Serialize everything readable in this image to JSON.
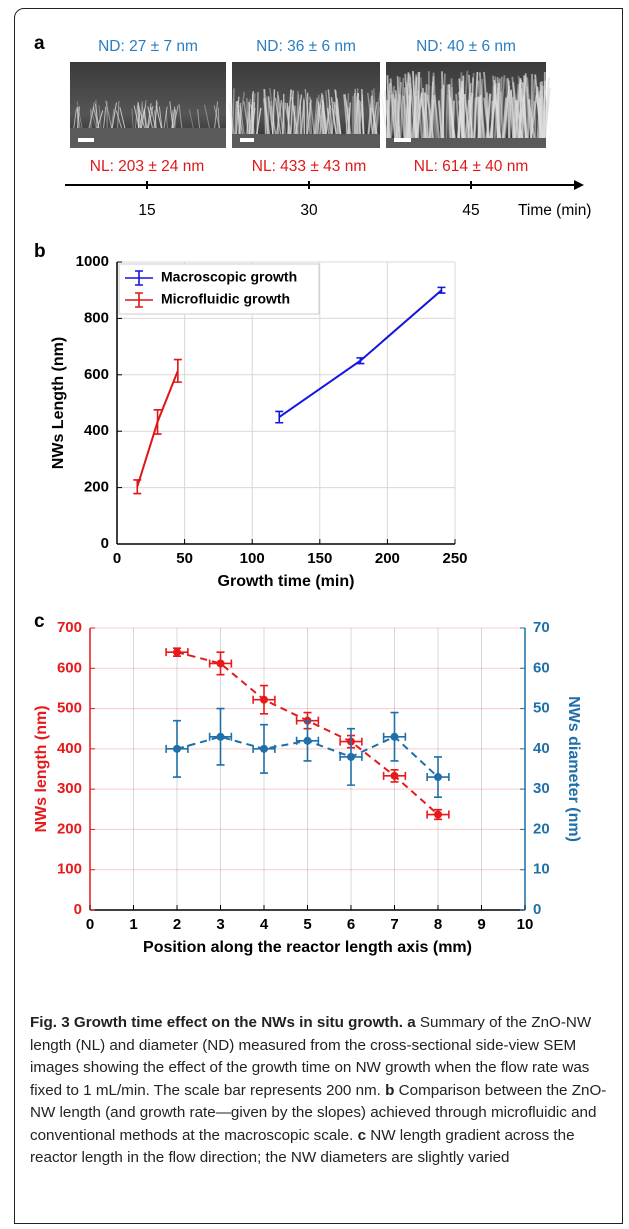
{
  "panel_a": {
    "label": "a",
    "diameter_labels": [
      "ND: 27 ± 7 nm",
      "ND: 36 ± 6 nm",
      "ND: 40 ± 6 nm"
    ],
    "length_labels": [
      "NL: 203 ± 24 nm",
      "NL: 433 ± 43 nm",
      "NL: 614 ± 40 nm"
    ],
    "timeline": {
      "xlim": [
        0,
        55
      ],
      "xticks": [
        15,
        30,
        45
      ],
      "xlabel": "Time (min)"
    }
  },
  "chart_data": [
    {
      "type": "line",
      "panel_label": "b",
      "xlabel": "Growth time (min)",
      "ylabel": "NWs Length (nm)",
      "xlim": [
        0,
        250
      ],
      "xticks": [
        0,
        50,
        100,
        150,
        200,
        250
      ],
      "ylim": [
        0,
        1000
      ],
      "yticks": [
        0,
        200,
        400,
        600,
        800,
        1000
      ],
      "grid": true,
      "legend": "upper left",
      "series": [
        {
          "name": "Macroscopic growth",
          "color": "#1515e0",
          "x": [
            120,
            180,
            240
          ],
          "values": [
            450,
            650,
            900
          ],
          "yerr": [
            20,
            10,
            10
          ]
        },
        {
          "name": "Microfluidic growth",
          "color": "#e01515",
          "x": [
            15,
            30,
            45
          ],
          "values": [
            203,
            433,
            614
          ],
          "yerr": [
            24,
            43,
            40
          ]
        }
      ]
    },
    {
      "type": "line",
      "panel_label": "c",
      "xlabel": "Position along the reactor length axis (mm)",
      "ylabel": "NWs length (nm)",
      "y2label": "NWs diameter (nm)",
      "xlim": [
        0,
        10
      ],
      "xticks": [
        0,
        1,
        2,
        3,
        4,
        5,
        6,
        7,
        8,
        9,
        10
      ],
      "ylim": [
        0,
        700
      ],
      "yticks": [
        0,
        100,
        200,
        300,
        400,
        500,
        600,
        700
      ],
      "y2lim": [
        0,
        70
      ],
      "y2ticks": [
        0,
        10,
        20,
        30,
        40,
        50,
        60,
        70
      ],
      "grid": true,
      "markers": true,
      "line_style": "dashed",
      "series": [
        {
          "color": "#e8191b",
          "x": [
            2,
            3,
            4,
            5,
            6,
            7,
            8
          ],
          "values": [
            640,
            612,
            522,
            470,
            418,
            333,
            237
          ],
          "yerr": [
            10,
            28,
            35,
            20,
            15,
            15,
            12
          ],
          "xerr": [
            0.25,
            0.25,
            0.25,
            0.25,
            0.25,
            0.25,
            0.25
          ]
        },
        {
          "color": "#1f6fa8",
          "axis": "y2",
          "x": [
            2,
            3,
            4,
            5,
            6,
            7,
            8
          ],
          "values": [
            40,
            43,
            40,
            42,
            38,
            43,
            33
          ],
          "yerr": [
            7,
            7,
            6,
            5,
            7,
            6,
            5
          ],
          "xerr": [
            0.25,
            0.25,
            0.25,
            0.25,
            0.25,
            0.25,
            0.25
          ]
        }
      ]
    }
  ],
  "caption": {
    "title": "Fig. 3 Growth time effect on the NWs in situ growth.",
    "parts": [
      {
        "label": "a",
        "text": "Summary of the ZnO-NW length (NL) and diameter (ND) measured from the cross-sectional side-view SEM images showing the effect of the growth time on NW growth when the flow rate was fixed to 1 mL/min. The scale bar represents 200 nm."
      },
      {
        "label": "b",
        "text": "Comparison between the ZnO-NW length (and growth rate—given by the slopes) achieved through microfluidic and conventional methods at the macroscopic scale."
      },
      {
        "label": "c",
        "text": "NW length gradient across the reactor length in the flow direction; the NW diameters are slightly varied"
      }
    ]
  }
}
